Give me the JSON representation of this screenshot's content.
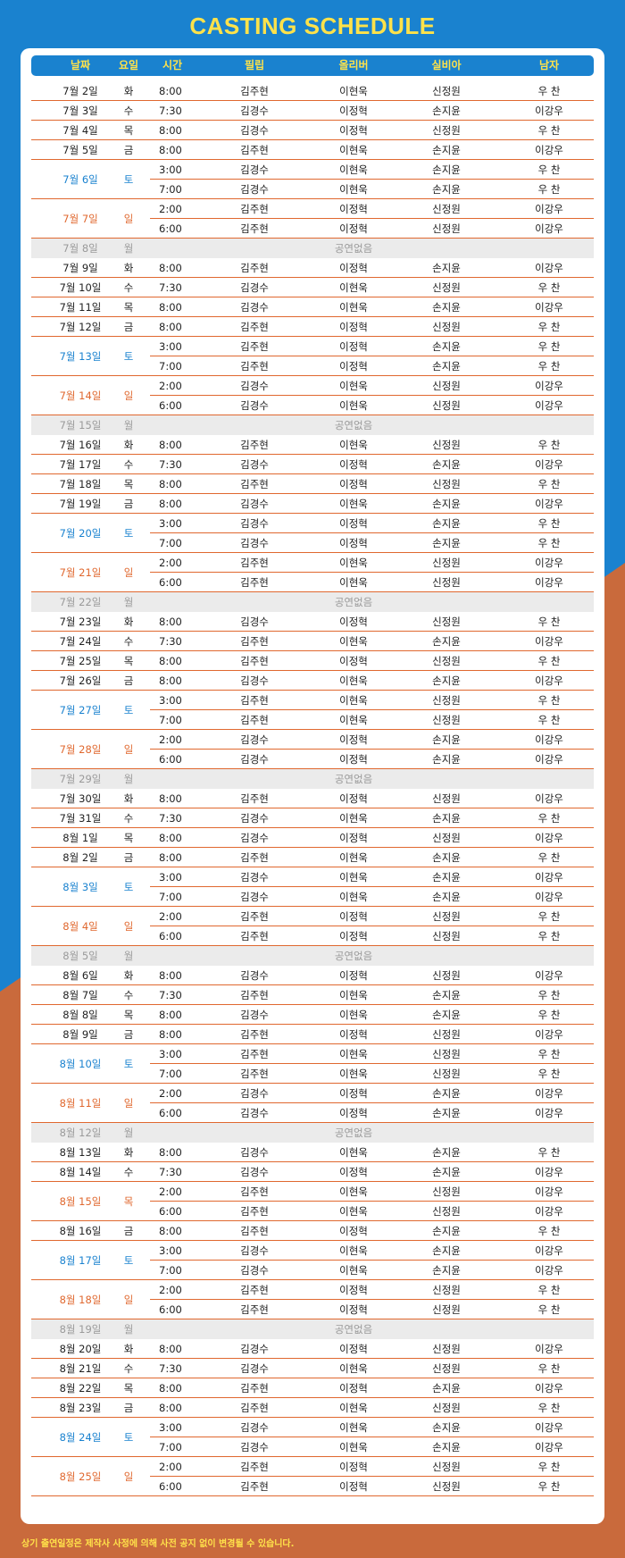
{
  "colors": {
    "blue": "#1a82cf",
    "orange": "#e0682f",
    "yellow": "#ffe24a",
    "closed_bg": "#ebebeb"
  },
  "title": "CASTING SCHEDULE",
  "columns": [
    "날짜",
    "요일",
    "시간",
    "필립",
    "올리버",
    "실비아",
    "남자"
  ],
  "closed_label": "공연없음",
  "footer": "상기 출연일정은 제작사 사정에 의해 사전 공지 없이 변경될 수 있습니다.",
  "schedule": [
    {
      "date": "7월 2일",
      "day": "화",
      "type": "normal",
      "shows": [
        {
          "time": "8:00",
          "cast": [
            "김주현",
            "이현욱",
            "신정원",
            "우 찬"
          ]
        }
      ]
    },
    {
      "date": "7월 3일",
      "day": "수",
      "type": "normal",
      "shows": [
        {
          "time": "7:30",
          "cast": [
            "김경수",
            "이정혁",
            "손지윤",
            "이강우"
          ]
        }
      ]
    },
    {
      "date": "7월 4일",
      "day": "목",
      "type": "normal",
      "shows": [
        {
          "time": "8:00",
          "cast": [
            "김경수",
            "이정혁",
            "신정원",
            "우 찬"
          ]
        }
      ]
    },
    {
      "date": "7월 5일",
      "day": "금",
      "type": "normal",
      "shows": [
        {
          "time": "8:00",
          "cast": [
            "김주현",
            "이현욱",
            "손지윤",
            "이강우"
          ]
        }
      ]
    },
    {
      "date": "7월 6일",
      "day": "토",
      "type": "sat",
      "shows": [
        {
          "time": "3:00",
          "cast": [
            "김경수",
            "이현욱",
            "손지윤",
            "우 찬"
          ]
        },
        {
          "time": "7:00",
          "cast": [
            "김경수",
            "이현욱",
            "손지윤",
            "우 찬"
          ]
        }
      ]
    },
    {
      "date": "7월 7일",
      "day": "일",
      "type": "sun",
      "shows": [
        {
          "time": "2:00",
          "cast": [
            "김주현",
            "이정혁",
            "신정원",
            "이강우"
          ]
        },
        {
          "time": "6:00",
          "cast": [
            "김주현",
            "이정혁",
            "신정원",
            "이강우"
          ]
        }
      ]
    },
    {
      "date": "7월 8일",
      "day": "월",
      "type": "closed",
      "shows": []
    },
    {
      "date": "7월 9일",
      "day": "화",
      "type": "normal",
      "shows": [
        {
          "time": "8:00",
          "cast": [
            "김주현",
            "이정혁",
            "손지윤",
            "이강우"
          ]
        }
      ]
    },
    {
      "date": "7월 10일",
      "day": "수",
      "type": "normal",
      "shows": [
        {
          "time": "7:30",
          "cast": [
            "김경수",
            "이현욱",
            "신정원",
            "우 찬"
          ]
        }
      ]
    },
    {
      "date": "7월 11일",
      "day": "목",
      "type": "normal",
      "shows": [
        {
          "time": "8:00",
          "cast": [
            "김경수",
            "이현욱",
            "손지윤",
            "이강우"
          ]
        }
      ]
    },
    {
      "date": "7월 12일",
      "day": "금",
      "type": "normal",
      "shows": [
        {
          "time": "8:00",
          "cast": [
            "김주현",
            "이정혁",
            "신정원",
            "우 찬"
          ]
        }
      ]
    },
    {
      "date": "7월 13일",
      "day": "토",
      "type": "sat",
      "shows": [
        {
          "time": "3:00",
          "cast": [
            "김주현",
            "이정혁",
            "손지윤",
            "우 찬"
          ]
        },
        {
          "time": "7:00",
          "cast": [
            "김주현",
            "이정혁",
            "손지윤",
            "우 찬"
          ]
        }
      ]
    },
    {
      "date": "7월 14일",
      "day": "일",
      "type": "sun",
      "shows": [
        {
          "time": "2:00",
          "cast": [
            "김경수",
            "이현욱",
            "신정원",
            "이강우"
          ]
        },
        {
          "time": "6:00",
          "cast": [
            "김경수",
            "이현욱",
            "신정원",
            "이강우"
          ]
        }
      ]
    },
    {
      "date": "7월 15일",
      "day": "월",
      "type": "closed",
      "shows": []
    },
    {
      "date": "7월 16일",
      "day": "화",
      "type": "normal",
      "shows": [
        {
          "time": "8:00",
          "cast": [
            "김주현",
            "이현욱",
            "신정원",
            "우 찬"
          ]
        }
      ]
    },
    {
      "date": "7월 17일",
      "day": "수",
      "type": "normal",
      "shows": [
        {
          "time": "7:30",
          "cast": [
            "김경수",
            "이정혁",
            "손지윤",
            "이강우"
          ]
        }
      ]
    },
    {
      "date": "7월 18일",
      "day": "목",
      "type": "normal",
      "shows": [
        {
          "time": "8:00",
          "cast": [
            "김주현",
            "이정혁",
            "신정원",
            "우 찬"
          ]
        }
      ]
    },
    {
      "date": "7월 19일",
      "day": "금",
      "type": "normal",
      "shows": [
        {
          "time": "8:00",
          "cast": [
            "김경수",
            "이현욱",
            "손지윤",
            "이강우"
          ]
        }
      ]
    },
    {
      "date": "7월 20일",
      "day": "토",
      "type": "sat",
      "shows": [
        {
          "time": "3:00",
          "cast": [
            "김경수",
            "이정혁",
            "손지윤",
            "우 찬"
          ]
        },
        {
          "time": "7:00",
          "cast": [
            "김경수",
            "이정혁",
            "손지윤",
            "우 찬"
          ]
        }
      ]
    },
    {
      "date": "7월 21일",
      "day": "일",
      "type": "sun",
      "shows": [
        {
          "time": "2:00",
          "cast": [
            "김주현",
            "이현욱",
            "신정원",
            "이강우"
          ]
        },
        {
          "time": "6:00",
          "cast": [
            "김주현",
            "이현욱",
            "신정원",
            "이강우"
          ]
        }
      ]
    },
    {
      "date": "7월 22일",
      "day": "월",
      "type": "closed",
      "shows": []
    },
    {
      "date": "7월 23일",
      "day": "화",
      "type": "normal",
      "shows": [
        {
          "time": "8:00",
          "cast": [
            "김경수",
            "이정혁",
            "신정원",
            "우 찬"
          ]
        }
      ]
    },
    {
      "date": "7월 24일",
      "day": "수",
      "type": "normal",
      "shows": [
        {
          "time": "7:30",
          "cast": [
            "김주현",
            "이현욱",
            "손지윤",
            "이강우"
          ]
        }
      ]
    },
    {
      "date": "7월 25일",
      "day": "목",
      "type": "normal",
      "shows": [
        {
          "time": "8:00",
          "cast": [
            "김주현",
            "이정혁",
            "신정원",
            "우 찬"
          ]
        }
      ]
    },
    {
      "date": "7월 26일",
      "day": "금",
      "type": "normal",
      "shows": [
        {
          "time": "8:00",
          "cast": [
            "김경수",
            "이현욱",
            "손지윤",
            "이강우"
          ]
        }
      ]
    },
    {
      "date": "7월 27일",
      "day": "토",
      "type": "sat",
      "shows": [
        {
          "time": "3:00",
          "cast": [
            "김주현",
            "이현욱",
            "신정원",
            "우 찬"
          ]
        },
        {
          "time": "7:00",
          "cast": [
            "김주현",
            "이현욱",
            "신정원",
            "우 찬"
          ]
        }
      ]
    },
    {
      "date": "7월 28일",
      "day": "일",
      "type": "sun",
      "shows": [
        {
          "time": "2:00",
          "cast": [
            "김경수",
            "이정혁",
            "손지윤",
            "이강우"
          ]
        },
        {
          "time": "6:00",
          "cast": [
            "김경수",
            "이정혁",
            "손지윤",
            "이강우"
          ]
        }
      ]
    },
    {
      "date": "7월 29일",
      "day": "월",
      "type": "closed",
      "shows": []
    },
    {
      "date": "7월 30일",
      "day": "화",
      "type": "normal",
      "shows": [
        {
          "time": "8:00",
          "cast": [
            "김주현",
            "이정혁",
            "신정원",
            "이강우"
          ]
        }
      ]
    },
    {
      "date": "7월 31일",
      "day": "수",
      "type": "normal",
      "shows": [
        {
          "time": "7:30",
          "cast": [
            "김경수",
            "이현욱",
            "손지윤",
            "우 찬"
          ]
        }
      ]
    },
    {
      "date": "8월 1일",
      "day": "목",
      "type": "normal",
      "shows": [
        {
          "time": "8:00",
          "cast": [
            "김경수",
            "이정혁",
            "신정원",
            "이강우"
          ]
        }
      ]
    },
    {
      "date": "8월 2일",
      "day": "금",
      "type": "normal",
      "shows": [
        {
          "time": "8:00",
          "cast": [
            "김주현",
            "이현욱",
            "손지윤",
            "우 찬"
          ]
        }
      ]
    },
    {
      "date": "8월 3일",
      "day": "토",
      "type": "sat",
      "shows": [
        {
          "time": "3:00",
          "cast": [
            "김경수",
            "이현욱",
            "손지윤",
            "이강우"
          ]
        },
        {
          "time": "7:00",
          "cast": [
            "김경수",
            "이현욱",
            "손지윤",
            "이강우"
          ]
        }
      ]
    },
    {
      "date": "8월 4일",
      "day": "일",
      "type": "sun",
      "shows": [
        {
          "time": "2:00",
          "cast": [
            "김주현",
            "이정혁",
            "신정원",
            "우 찬"
          ]
        },
        {
          "time": "6:00",
          "cast": [
            "김주현",
            "이정혁",
            "신정원",
            "우 찬"
          ]
        }
      ]
    },
    {
      "date": "8월 5일",
      "day": "월",
      "type": "closed",
      "shows": []
    },
    {
      "date": "8월 6일",
      "day": "화",
      "type": "normal",
      "shows": [
        {
          "time": "8:00",
          "cast": [
            "김경수",
            "이정혁",
            "신정원",
            "이강우"
          ]
        }
      ]
    },
    {
      "date": "8월 7일",
      "day": "수",
      "type": "normal",
      "shows": [
        {
          "time": "7:30",
          "cast": [
            "김주현",
            "이현욱",
            "손지윤",
            "우 찬"
          ]
        }
      ]
    },
    {
      "date": "8월 8일",
      "day": "목",
      "type": "normal",
      "shows": [
        {
          "time": "8:00",
          "cast": [
            "김경수",
            "이현욱",
            "손지윤",
            "우 찬"
          ]
        }
      ]
    },
    {
      "date": "8월 9일",
      "day": "금",
      "type": "normal",
      "shows": [
        {
          "time": "8:00",
          "cast": [
            "김주현",
            "이정혁",
            "신정원",
            "이강우"
          ]
        }
      ]
    },
    {
      "date": "8월 10일",
      "day": "토",
      "type": "sat",
      "shows": [
        {
          "time": "3:00",
          "cast": [
            "김주현",
            "이현욱",
            "신정원",
            "우 찬"
          ]
        },
        {
          "time": "7:00",
          "cast": [
            "김주현",
            "이현욱",
            "신정원",
            "우 찬"
          ]
        }
      ]
    },
    {
      "date": "8월 11일",
      "day": "일",
      "type": "sun",
      "shows": [
        {
          "time": "2:00",
          "cast": [
            "김경수",
            "이정혁",
            "손지윤",
            "이강우"
          ]
        },
        {
          "time": "6:00",
          "cast": [
            "김경수",
            "이정혁",
            "손지윤",
            "이강우"
          ]
        }
      ]
    },
    {
      "date": "8월 12일",
      "day": "월",
      "type": "closed",
      "shows": []
    },
    {
      "date": "8월 13일",
      "day": "화",
      "type": "normal",
      "shows": [
        {
          "time": "8:00",
          "cast": [
            "김경수",
            "이현욱",
            "손지윤",
            "우 찬"
          ]
        }
      ]
    },
    {
      "date": "8월 14일",
      "day": "수",
      "type": "normal",
      "shows": [
        {
          "time": "7:30",
          "cast": [
            "김경수",
            "이정혁",
            "손지윤",
            "이강우"
          ]
        }
      ]
    },
    {
      "date": "8월 15일",
      "day": "목",
      "type": "sun",
      "shows": [
        {
          "time": "2:00",
          "cast": [
            "김주현",
            "이현욱",
            "신정원",
            "이강우"
          ]
        },
        {
          "time": "6:00",
          "cast": [
            "김주현",
            "이현욱",
            "신정원",
            "이강우"
          ]
        }
      ]
    },
    {
      "date": "8월 16일",
      "day": "금",
      "type": "normal",
      "shows": [
        {
          "time": "8:00",
          "cast": [
            "김주현",
            "이정혁",
            "손지윤",
            "우 찬"
          ]
        }
      ]
    },
    {
      "date": "8월 17일",
      "day": "토",
      "type": "sat",
      "shows": [
        {
          "time": "3:00",
          "cast": [
            "김경수",
            "이현욱",
            "손지윤",
            "이강우"
          ]
        },
        {
          "time": "7:00",
          "cast": [
            "김경수",
            "이현욱",
            "손지윤",
            "이강우"
          ]
        }
      ]
    },
    {
      "date": "8월 18일",
      "day": "일",
      "type": "sun",
      "shows": [
        {
          "time": "2:00",
          "cast": [
            "김주현",
            "이정혁",
            "신정원",
            "우 찬"
          ]
        },
        {
          "time": "6:00",
          "cast": [
            "김주현",
            "이정혁",
            "신정원",
            "우 찬"
          ]
        }
      ]
    },
    {
      "date": "8월 19일",
      "day": "월",
      "type": "closed",
      "shows": []
    },
    {
      "date": "8월 20일",
      "day": "화",
      "type": "normal",
      "shows": [
        {
          "time": "8:00",
          "cast": [
            "김경수",
            "이정혁",
            "신정원",
            "이강우"
          ]
        }
      ]
    },
    {
      "date": "8월 21일",
      "day": "수",
      "type": "normal",
      "shows": [
        {
          "time": "7:30",
          "cast": [
            "김경수",
            "이현욱",
            "신정원",
            "우 찬"
          ]
        }
      ]
    },
    {
      "date": "8월 22일",
      "day": "목",
      "type": "normal",
      "shows": [
        {
          "time": "8:00",
          "cast": [
            "김주현",
            "이정혁",
            "손지윤",
            "이강우"
          ]
        }
      ]
    },
    {
      "date": "8월 23일",
      "day": "금",
      "type": "normal",
      "shows": [
        {
          "time": "8:00",
          "cast": [
            "김주현",
            "이현욱",
            "신정원",
            "우 찬"
          ]
        }
      ]
    },
    {
      "date": "8월 24일",
      "day": "토",
      "type": "sat",
      "shows": [
        {
          "time": "3:00",
          "cast": [
            "김경수",
            "이현욱",
            "손지윤",
            "이강우"
          ]
        },
        {
          "time": "7:00",
          "cast": [
            "김경수",
            "이현욱",
            "손지윤",
            "이강우"
          ]
        }
      ]
    },
    {
      "date": "8월 25일",
      "day": "일",
      "type": "sun",
      "shows": [
        {
          "time": "2:00",
          "cast": [
            "김주현",
            "이정혁",
            "신정원",
            "우 찬"
          ]
        },
        {
          "time": "6:00",
          "cast": [
            "김주현",
            "이정혁",
            "신정원",
            "우 찬"
          ]
        }
      ]
    }
  ]
}
